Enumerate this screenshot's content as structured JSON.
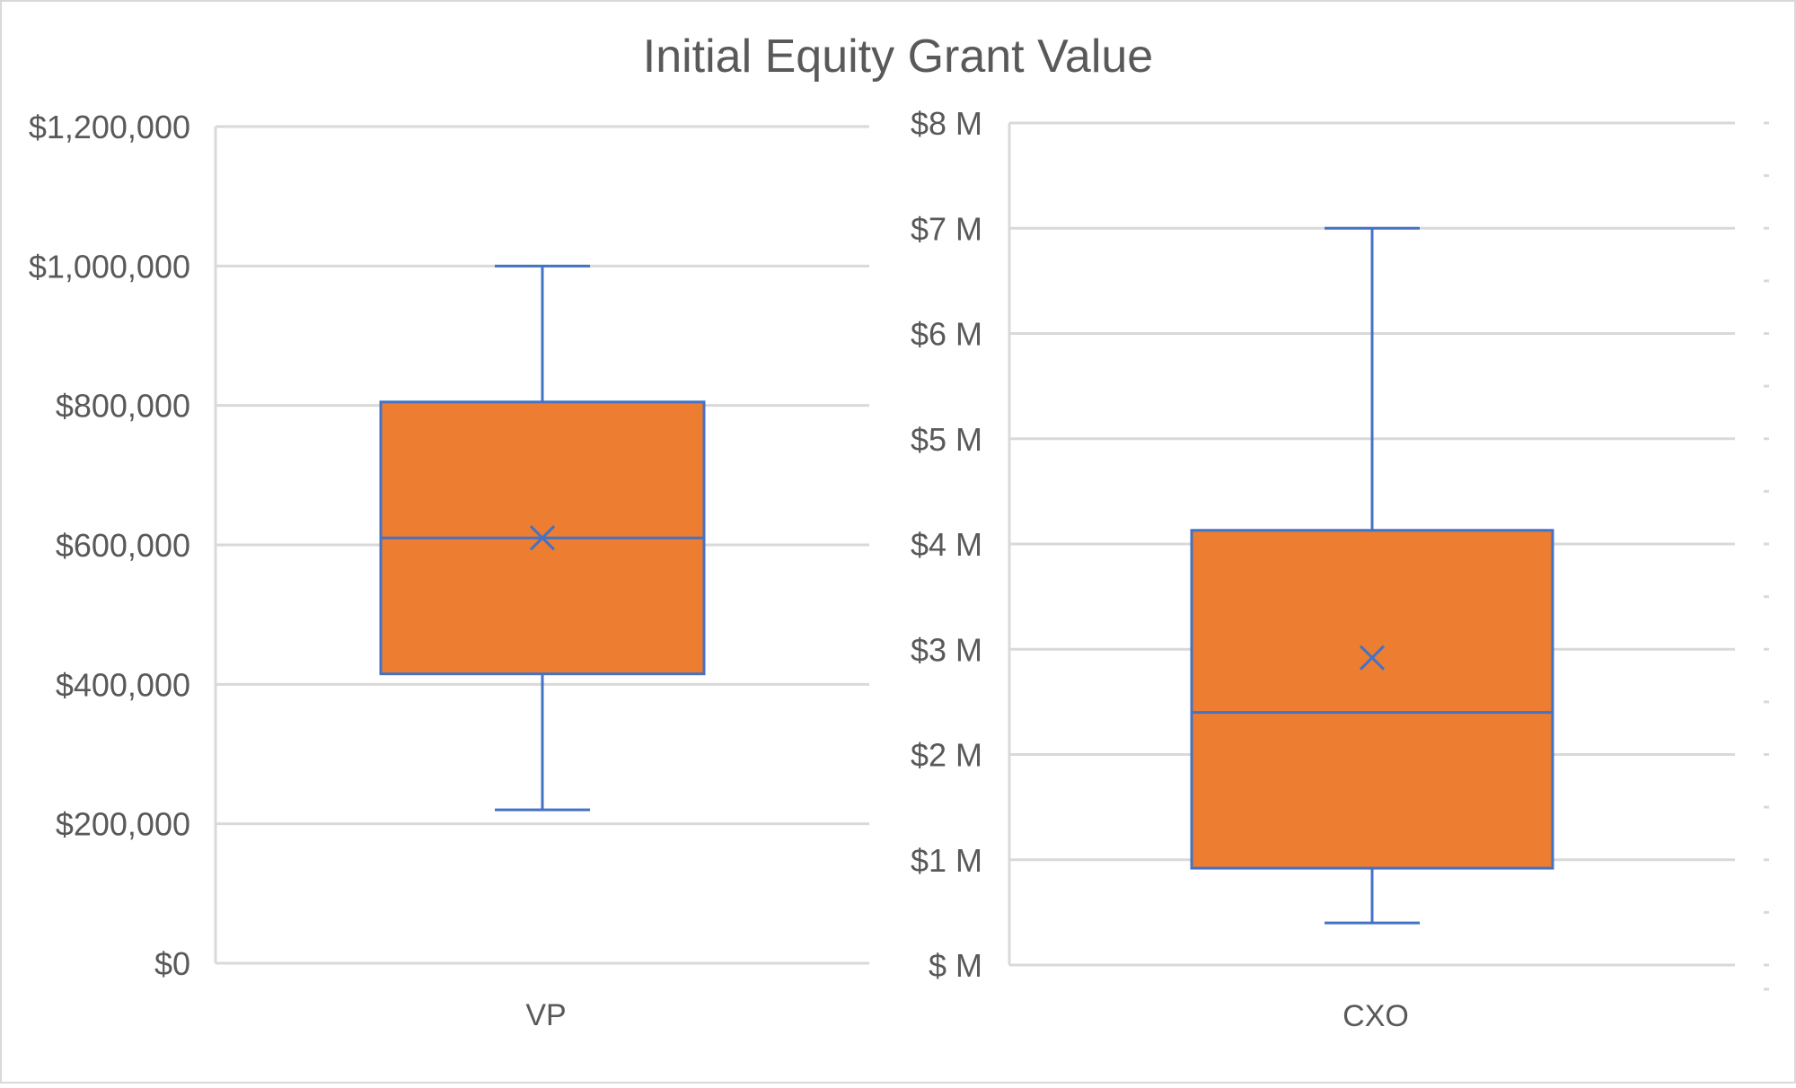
{
  "title": "Initial Equity Grant Value",
  "colors": {
    "box_fill": "#ED7D31",
    "box_stroke": "#4472C4",
    "grid": "#D9D9D9",
    "text": "#595959"
  },
  "chart_data": [
    {
      "type": "box",
      "categories": [
        "VP"
      ],
      "ylim": [
        0,
        1200000
      ],
      "y_ticks": [
        0,
        200000,
        400000,
        600000,
        800000,
        1000000,
        1200000
      ],
      "y_tick_labels": [
        "$0",
        "$200,000",
        "$400,000",
        "$600,000",
        "$800,000",
        "$1,000,000",
        "$1,200,000"
      ],
      "grid": true,
      "boxes": [
        {
          "category": "VP",
          "min": 220000,
          "q1": 415000,
          "median": 610000,
          "q3": 805000,
          "max": 1000000,
          "mean": 610000
        }
      ]
    },
    {
      "type": "box",
      "categories": [
        "CXO"
      ],
      "ylim": [
        0,
        8
      ],
      "y_unit": "M",
      "y_ticks": [
        0,
        1,
        2,
        3,
        4,
        5,
        6,
        7,
        8
      ],
      "y_tick_labels": [
        "$ M",
        "$1 M",
        "$2 M",
        "$3 M",
        "$4 M",
        "$5 M",
        "$6 M",
        "$7 M",
        "$8 M"
      ],
      "grid": true,
      "boxes": [
        {
          "category": "CXO",
          "min": 0.4,
          "q1": 0.92,
          "median": 2.4,
          "q3": 4.13,
          "max": 7.0,
          "mean": 2.92
        }
      ]
    }
  ]
}
